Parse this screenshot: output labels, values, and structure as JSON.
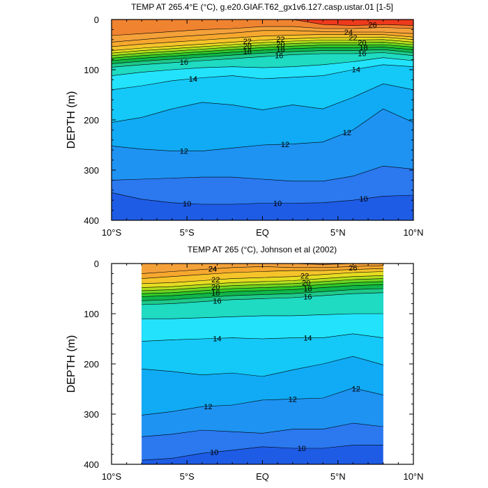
{
  "chart_data": [
    {
      "type": "contour",
      "title": "TEMP AT 265.4°E (°C), g.e20.GIAF.T62_gx1v6.127.casp.ustar.01 [1-5]",
      "ylabel": "DEPTH (m)",
      "xlim": [
        -10,
        10
      ],
      "ylim": [
        400,
        0
      ],
      "x_ticks": [
        -10,
        -5,
        0,
        5,
        10
      ],
      "x_tick_labels": [
        "10°S",
        "5°S",
        "EQ",
        "5°N",
        "10°N"
      ],
      "y_ticks": [
        0,
        100,
        200,
        300,
        400
      ],
      "y_tick_labels": [
        "0",
        "100",
        "200",
        "300",
        "400"
      ],
      "data_x_range": [
        -10,
        10
      ],
      "contour_interval": 1,
      "isotherm_depths": {
        "x": [
          -10,
          -8,
          -6,
          -4,
          -2,
          0,
          2,
          4,
          6,
          8,
          10
        ],
        "levels": {
          "10": [
            345,
            358,
            365,
            368,
            368,
            366,
            366,
            365,
            360,
            352,
            350
          ],
          "11": [
            320,
            318,
            316,
            314,
            314,
            318,
            322,
            322,
            312,
            292,
            298
          ],
          "12": [
            252,
            258,
            262,
            262,
            256,
            250,
            248,
            244,
            220,
            178,
            205
          ],
          "13": [
            205,
            195,
            178,
            165,
            170,
            180,
            170,
            178,
            155,
            128,
            140
          ],
          "14": [
            140,
            132,
            122,
            116,
            112,
            118,
            115,
            112,
            100,
            90,
            94
          ],
          "15": [
            112,
            105,
            100,
            96,
            94,
            96,
            94,
            90,
            84,
            76,
            82
          ],
          "16": [
            95,
            90,
            86,
            82,
            78,
            74,
            70,
            68,
            68,
            66,
            72
          ],
          "17": [
            88,
            83,
            79,
            75,
            71,
            67,
            64,
            62,
            62,
            60,
            66
          ],
          "18": [
            82,
            77,
            73,
            69,
            65,
            61,
            58,
            56,
            56,
            55,
            60
          ],
          "19": [
            77,
            72,
            68,
            64,
            60,
            56,
            53,
            51,
            51,
            50,
            55
          ],
          "20": [
            72,
            67,
            63,
            59,
            55,
            51,
            48,
            46,
            46,
            45,
            50
          ],
          "21": [
            67,
            62,
            58,
            54,
            50,
            46,
            43,
            41,
            41,
            40,
            45
          ],
          "22": [
            62,
            57,
            53,
            49,
            45,
            41,
            38,
            36,
            36,
            35,
            40
          ],
          "23": [
            54,
            49,
            45,
            41,
            37,
            33,
            31,
            30,
            30,
            30,
            35
          ],
          "24": [
            45,
            40,
            35,
            31,
            27,
            22,
            22,
            24,
            25,
            25,
            28
          ],
          "25": [
            32,
            28,
            24,
            20,
            18,
            14,
            14,
            18,
            18,
            16,
            18
          ],
          "26": [
            0,
            0,
            0,
            0,
            0,
            0,
            0,
            10,
            12,
            10,
            12
          ]
        }
      },
      "contour_labels": [
        "22",
        "20",
        "18",
        "16",
        "14",
        "22",
        "20",
        "18",
        "16",
        "14",
        "24",
        "26",
        "22",
        "20",
        "18",
        "16",
        "14",
        "12",
        "12",
        "12",
        "10",
        "10",
        "10"
      ]
    },
    {
      "type": "contour",
      "title": "TEMP AT 265 (°C), Johnson et al (2002)",
      "ylabel": "DEPTH (m)",
      "xlim": [
        -10,
        10
      ],
      "ylim": [
        400,
        0
      ],
      "x_ticks": [
        -10,
        -5,
        0,
        5,
        10
      ],
      "x_tick_labels": [
        "10°S",
        "5°S",
        "EQ",
        "5°N",
        "10°N"
      ],
      "y_ticks": [
        0,
        100,
        200,
        300,
        400
      ],
      "y_tick_labels": [
        "0",
        "100",
        "200",
        "300",
        "400"
      ],
      "data_x_range": [
        -8,
        8
      ],
      "contour_interval": 1,
      "isotherm_depths": {
        "x": [
          -8,
          -6,
          -4,
          -2,
          0,
          2,
          4,
          6,
          8
        ],
        "levels": {
          "10": [
            392,
            388,
            378,
            372,
            365,
            368,
            368,
            362,
            362
          ],
          "11": [
            345,
            340,
            332,
            335,
            338,
            330,
            330,
            318,
            325
          ],
          "12": [
            302,
            295,
            285,
            282,
            272,
            270,
            268,
            248,
            262
          ],
          "13": [
            210,
            215,
            222,
            218,
            225,
            212,
            200,
            185,
            202
          ],
          "14": [
            155,
            152,
            150,
            148,
            150,
            148,
            148,
            140,
            148
          ],
          "15": [
            110,
            110,
            108,
            106,
            104,
            104,
            102,
            100,
            100
          ],
          "16": [
            82,
            80,
            76,
            72,
            70,
            68,
            64,
            60,
            58
          ],
          "17": [
            74,
            72,
            68,
            64,
            62,
            60,
            56,
            52,
            50
          ],
          "18": [
            66,
            64,
            60,
            56,
            54,
            52,
            48,
            44,
            42
          ],
          "19": [
            60,
            58,
            54,
            50,
            48,
            46,
            42,
            38,
            36
          ],
          "20": [
            54,
            52,
            48,
            44,
            42,
            40,
            36,
            32,
            30
          ],
          "21": [
            48,
            46,
            42,
            38,
            36,
            34,
            30,
            26,
            24
          ],
          "22": [
            40,
            38,
            34,
            30,
            28,
            26,
            22,
            18,
            16
          ],
          "23": [
            30,
            26,
            22,
            18,
            16,
            14,
            14,
            12,
            10
          ],
          "24": [
            20,
            16,
            12,
            8,
            6,
            8,
            8,
            6,
            4
          ],
          "25": [
            0,
            0,
            0,
            0,
            0,
            0,
            2,
            0,
            0
          ],
          "26": [
            0,
            0,
            0,
            0,
            0,
            0,
            0,
            0,
            0
          ]
        }
      },
      "contour_labels": [
        "24",
        "22",
        "20",
        "18",
        "16",
        "22",
        "20",
        "18",
        "16",
        "24",
        "26",
        "14",
        "14",
        "12",
        "12",
        "12",
        "10",
        "10"
      ]
    }
  ]
}
